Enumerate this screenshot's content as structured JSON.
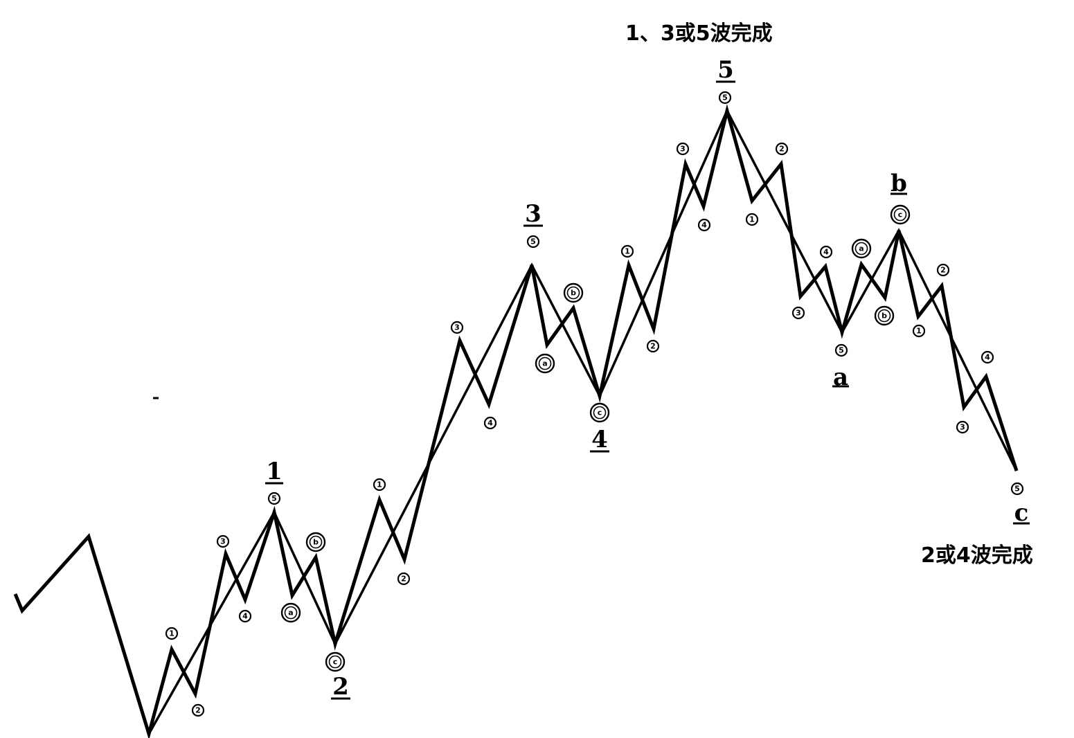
{
  "captions": {
    "top": "1、3或5波完成",
    "bottom": "2或4波完成"
  },
  "major_labels": [
    "1",
    "2",
    "3",
    "4",
    "5",
    "a",
    "b",
    "c"
  ],
  "sub_labels": {
    "w1_1": "1",
    "w1_2": "2",
    "w1_3": "3",
    "w1_4": "4",
    "w1_5": "5",
    "w2_a": "a",
    "w2_b": "b",
    "w2_c": "c",
    "w3_1": "1",
    "w3_2": "2",
    "w3_3": "3",
    "w3_4": "4",
    "w3_5": "5",
    "w4_a": "a",
    "w4_b": "b",
    "w4_c": "c",
    "w5_1": "1",
    "w5_2": "2",
    "w5_3": "3",
    "w5_4": "4",
    "w5_5": "5",
    "wa_1": "1",
    "wa_2": "2",
    "wa_3": "3",
    "wa_4": "4",
    "wa_5": "5",
    "wb_a": "a",
    "wb_b": "b",
    "wb_c": "c",
    "wc_1": "1",
    "wc_2": "2",
    "wc_3": "3",
    "wc_4": "4",
    "wc_5": "5"
  },
  "colors": {
    "line": "#000000",
    "background": "#ffffff"
  }
}
